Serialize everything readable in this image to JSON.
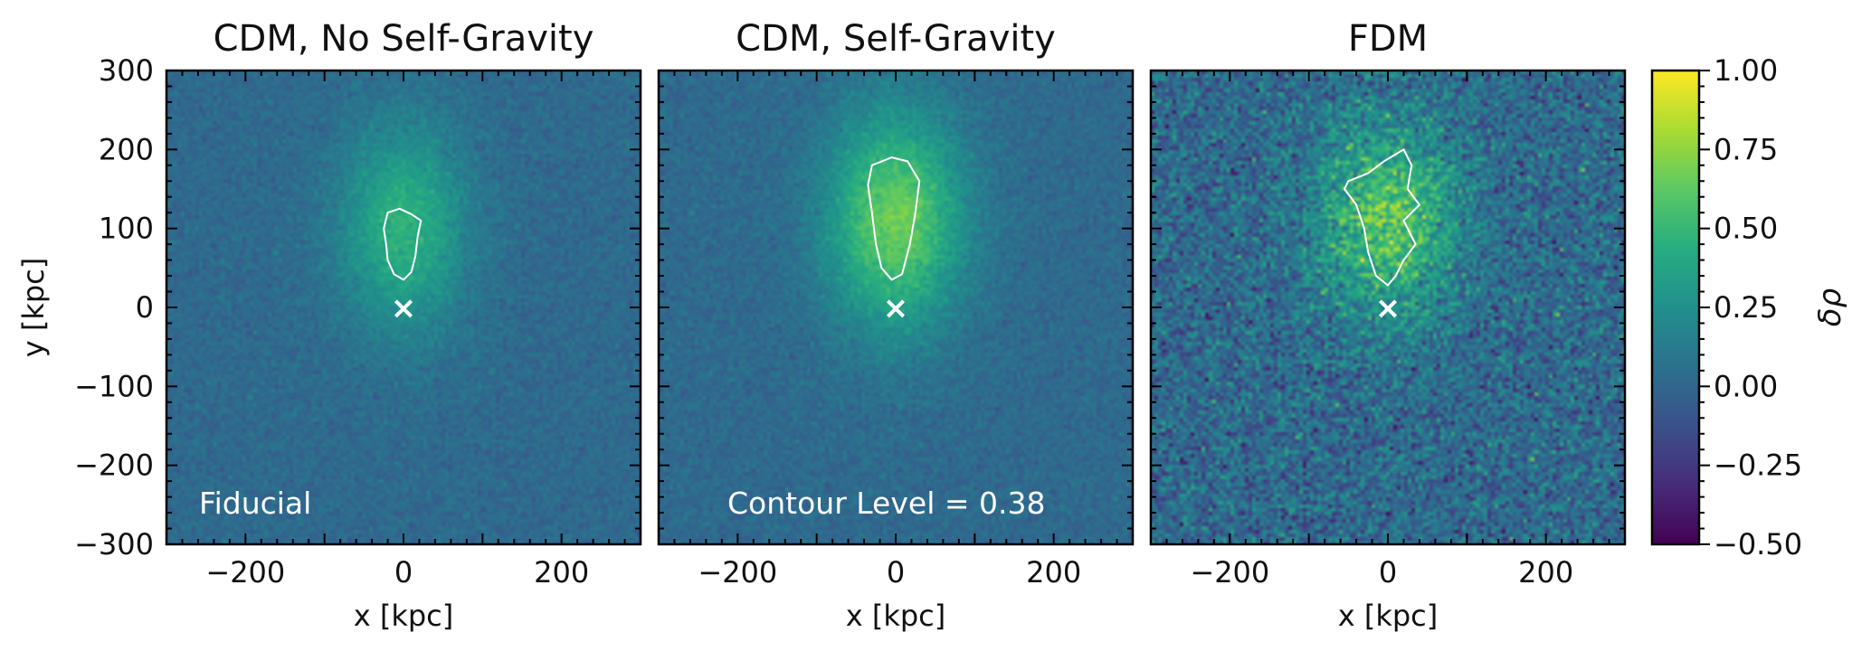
{
  "chart_data": {
    "type": "heatmap",
    "x_range": [
      -300,
      300
    ],
    "y_range": [
      -300,
      300
    ],
    "x_ticks": [
      -200,
      0,
      200
    ],
    "y_ticks": [
      300,
      200,
      100,
      0,
      -100,
      -200,
      -300
    ],
    "x_tick_labels": [
      "−200",
      "0",
      "200"
    ],
    "y_tick_labels": [
      "300",
      "200",
      "100",
      "0",
      "−100",
      "−200",
      "−300"
    ],
    "xlabel": "x [kpc]",
    "ylabel": "y [kpc]",
    "marker": {
      "symbol": "×",
      "x": 0,
      "y": 0
    },
    "panels": [
      {
        "title": "CDM, No Self-Gravity",
        "annotation": "Fiducial",
        "noise": 0.1,
        "blob": {
          "center": [
            0,
            100
          ],
          "sigma": [
            55,
            90
          ],
          "amp": 0.45
        },
        "contour": [
          [
            -20,
            120
          ],
          [
            -5,
            125
          ],
          [
            10,
            118
          ],
          [
            22,
            110
          ],
          [
            18,
            90
          ],
          [
            15,
            65
          ],
          [
            10,
            45
          ],
          [
            0,
            35
          ],
          [
            -12,
            42
          ],
          [
            -20,
            60
          ],
          [
            -22,
            80
          ],
          [
            -25,
            100
          ]
        ]
      },
      {
        "title": "CDM, Self-Gravity",
        "annotation": "Contour Level = 0.38",
        "noise": 0.1,
        "blob": {
          "center": [
            0,
            110
          ],
          "sigma": [
            60,
            95
          ],
          "amp": 0.65
        },
        "contour": [
          [
            -30,
            180
          ],
          [
            -5,
            190
          ],
          [
            15,
            185
          ],
          [
            30,
            160
          ],
          [
            25,
            120
          ],
          [
            18,
            80
          ],
          [
            8,
            42
          ],
          [
            -5,
            35
          ],
          [
            -18,
            50
          ],
          [
            -25,
            80
          ],
          [
            -30,
            120
          ],
          [
            -35,
            155
          ]
        ]
      },
      {
        "title": "FDM",
        "annotation": "",
        "noise": 0.32,
        "blob": {
          "center": [
            0,
            110
          ],
          "sigma": [
            60,
            85
          ],
          "amp": 0.6
        },
        "contour": [
          [
            -50,
            160
          ],
          [
            -25,
            170
          ],
          [
            -5,
            185
          ],
          [
            20,
            200
          ],
          [
            30,
            180
          ],
          [
            25,
            150
          ],
          [
            40,
            130
          ],
          [
            20,
            110
          ],
          [
            35,
            80
          ],
          [
            20,
            60
          ],
          [
            10,
            40
          ],
          [
            0,
            28
          ],
          [
            -15,
            40
          ],
          [
            -25,
            70
          ],
          [
            -30,
            100
          ],
          [
            -40,
            130
          ],
          [
            -55,
            150
          ]
        ]
      }
    ],
    "colorbar": {
      "label": "δρ",
      "min": -0.5,
      "max": 1.0,
      "ticks": [
        1.0,
        0.75,
        0.5,
        0.25,
        0.0,
        -0.25,
        -0.5
      ],
      "tick_labels": [
        "1.00",
        "0.75",
        "0.50",
        "0.25",
        "0.00",
        "−0.25",
        "−0.50"
      ],
      "colormap": [
        "#440154",
        "#472c7a",
        "#3b518b",
        "#2c718e",
        "#21908d",
        "#27ad81",
        "#5cc863",
        "#aadc32",
        "#fde725"
      ]
    },
    "grid": false
  }
}
